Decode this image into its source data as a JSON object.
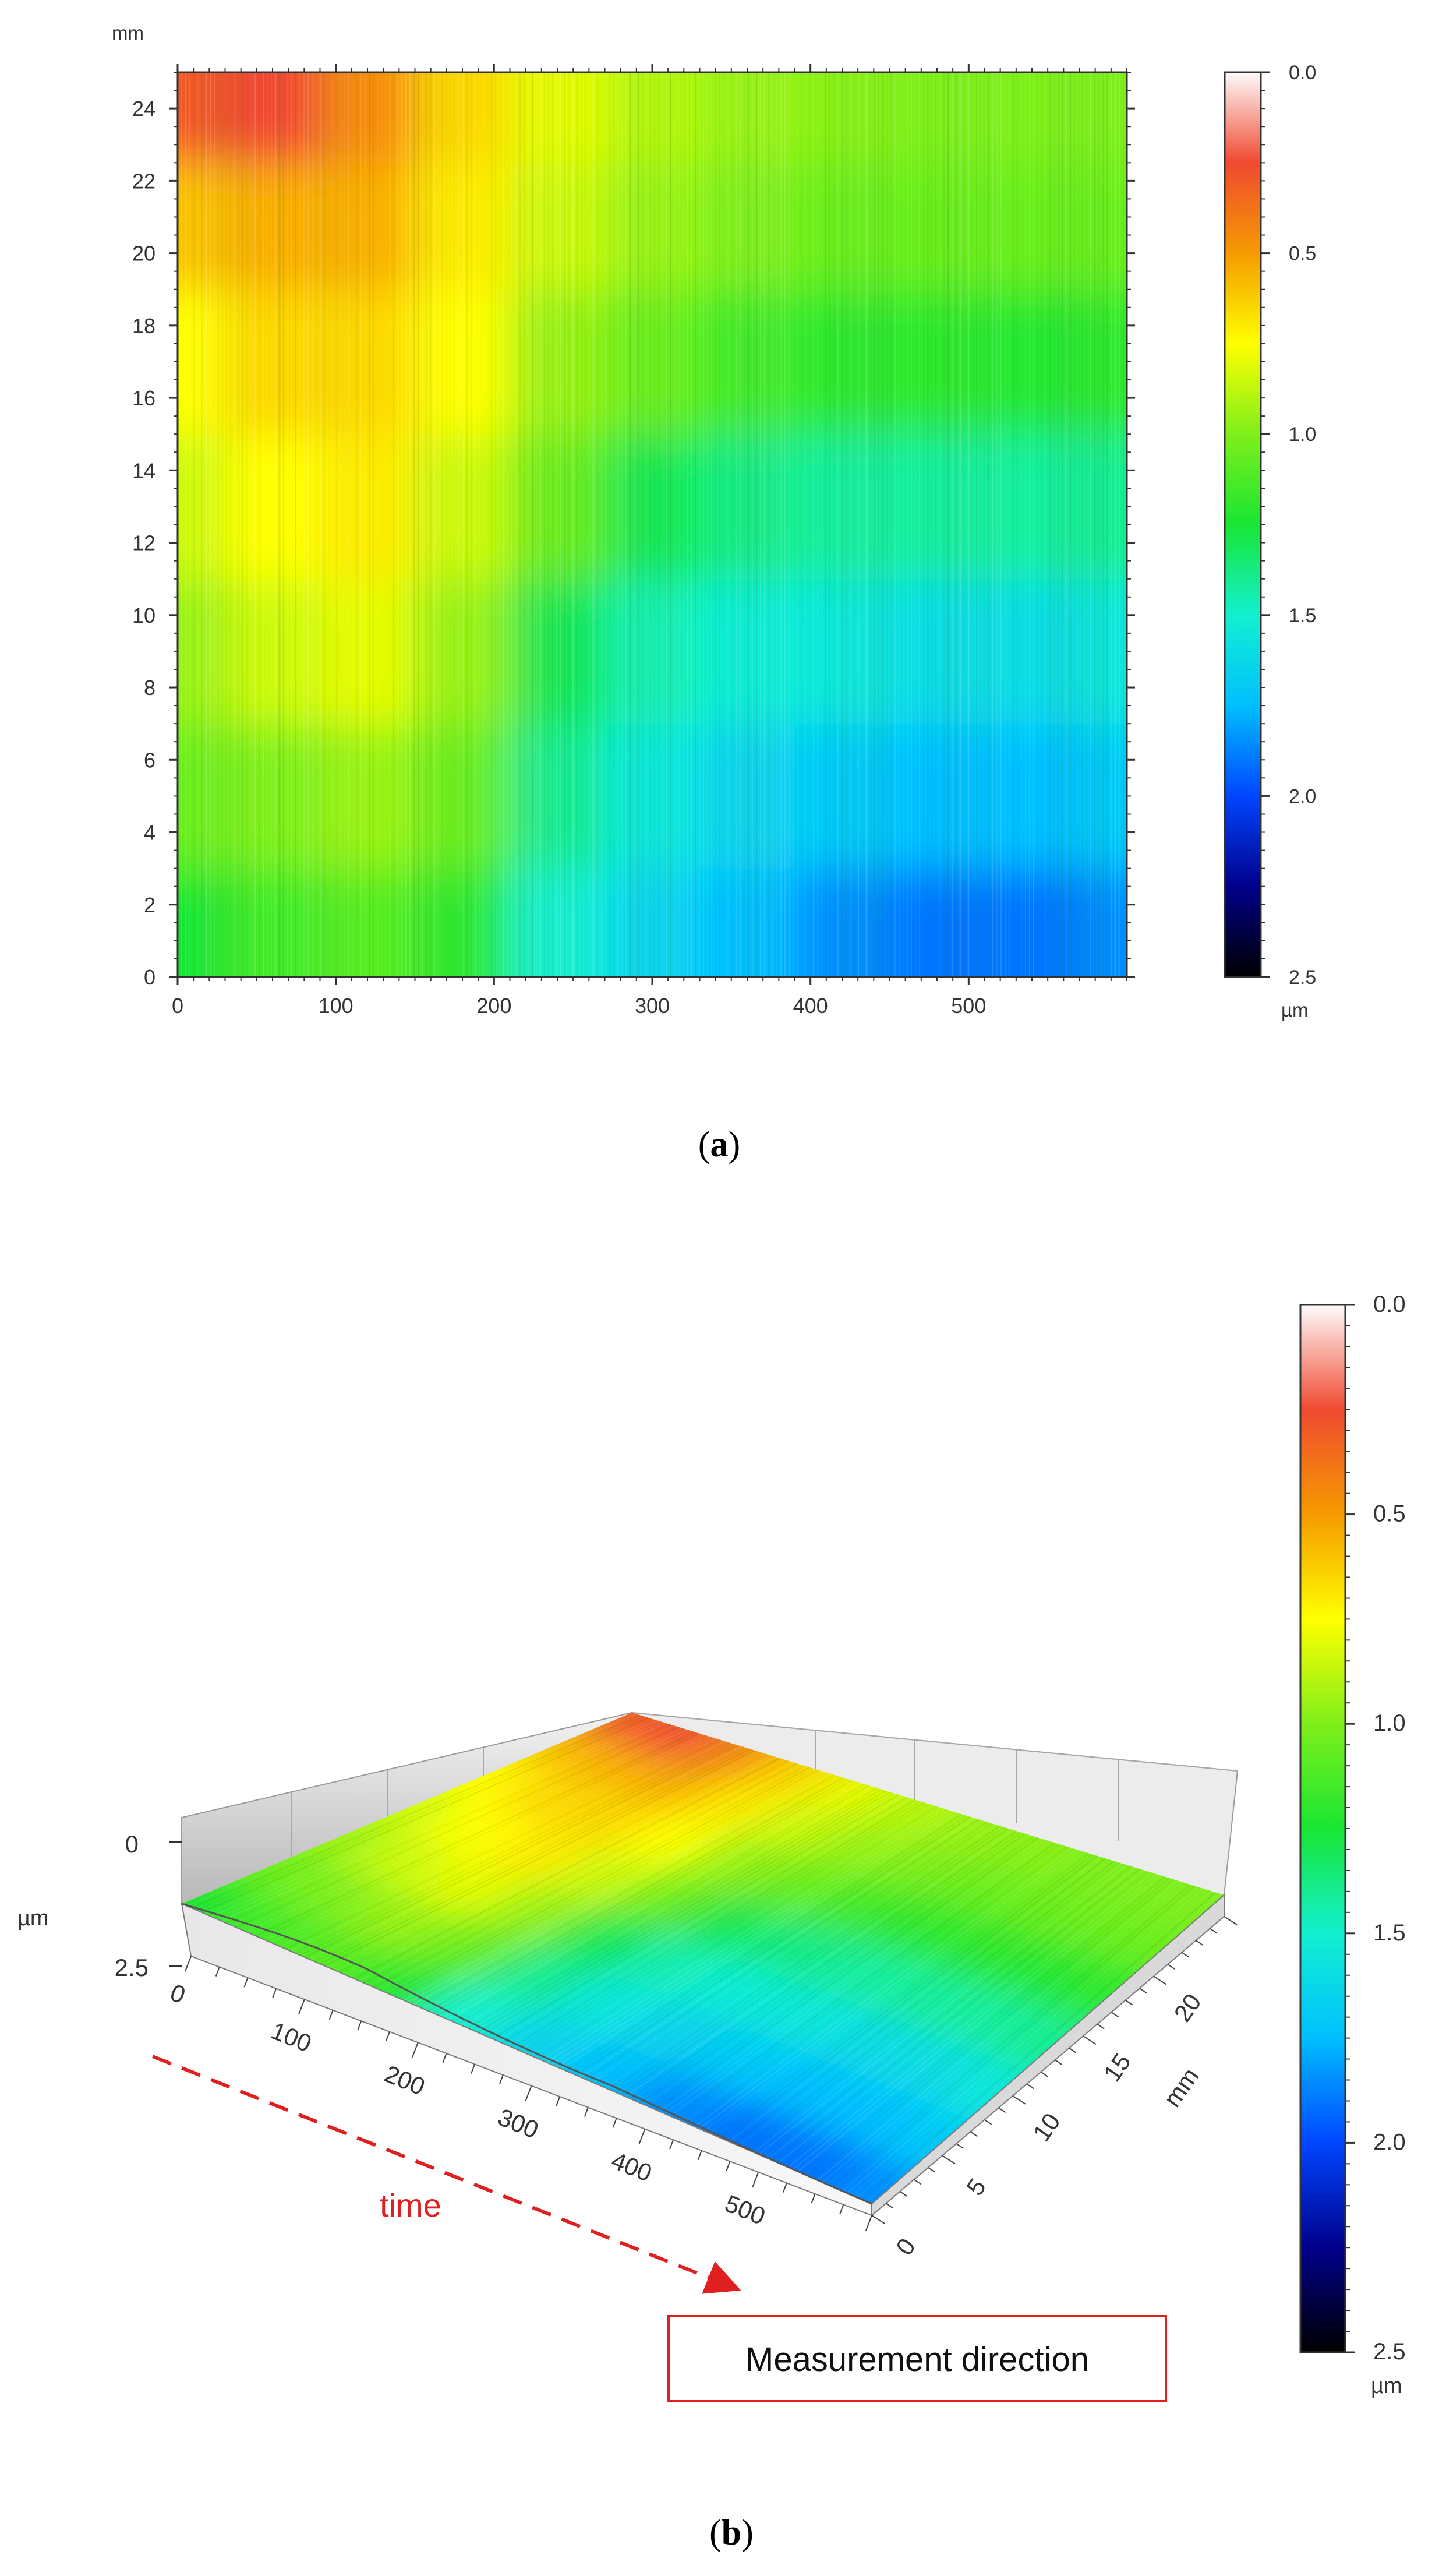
{
  "panel_a_label": "a",
  "panel_b_label": "b",
  "annotations": {
    "time": "time",
    "measurement_direction": "Measurement direction"
  },
  "colors": {
    "annotation_red": "#e02020",
    "colormap_stops": [
      "#fdfbfb",
      "#f04a30",
      "#f59a00",
      "#ffff00",
      "#7fef1a",
      "#19e633",
      "#12f0d0",
      "#00bfff",
      "#0046ff",
      "#00008b",
      "#000000"
    ]
  },
  "chart_data": [
    {
      "type": "heatmap",
      "title": "",
      "x": [
        0,
        100,
        200,
        300,
        400,
        500
      ],
      "xlim": [
        0,
        600
      ],
      "xlabel": "",
      "ylabel": "mm",
      "yticks": [
        0,
        2,
        4,
        6,
        8,
        10,
        12,
        14,
        16,
        18,
        20,
        22,
        24
      ],
      "ylim": [
        0,
        25
      ],
      "colorbar": {
        "ticks": [
          "0.0",
          "0.5",
          "1.0",
          "1.5",
          "2.0",
          "2.5"
        ],
        "unit": "µm",
        "range": [
          0,
          2.5
        ],
        "reversed": true
      },
      "grid_y_mm": [
        1,
        5,
        9,
        13,
        17,
        21,
        24
      ],
      "grid_x": [
        0,
        60,
        120,
        180,
        240,
        300,
        360,
        420,
        480,
        540,
        600
      ],
      "values_um": [
        [
          1.25,
          1.15,
          1.1,
          1.2,
          1.5,
          1.65,
          1.75,
          1.85,
          1.9,
          1.9,
          1.85
        ],
        [
          1.05,
          1.0,
          0.95,
          1.05,
          1.4,
          1.55,
          1.65,
          1.7,
          1.75,
          1.75,
          1.7
        ],
        [
          0.95,
          0.85,
          0.8,
          0.95,
          1.3,
          1.45,
          1.52,
          1.55,
          1.6,
          1.6,
          1.55
        ],
        [
          0.85,
          0.75,
          0.7,
          0.85,
          1.05,
          1.3,
          1.38,
          1.42,
          1.42,
          1.42,
          1.4
        ],
        [
          0.75,
          0.65,
          0.65,
          0.75,
          0.95,
          1.05,
          1.15,
          1.2,
          1.2,
          1.22,
          1.2
        ],
        [
          0.6,
          0.55,
          0.55,
          0.7,
          0.85,
          0.95,
          1.0,
          1.05,
          1.05,
          1.05,
          1.05
        ],
        [
          0.3,
          0.25,
          0.45,
          0.65,
          0.8,
          0.9,
          0.95,
          0.98,
          1.0,
          1.0,
          1.0
        ]
      ]
    },
    {
      "type": "heatmap",
      "title": "",
      "view": "3d-surface",
      "x_ticks": [
        0,
        100,
        200,
        300,
        400,
        500
      ],
      "y_ticks": [
        0,
        5,
        10,
        15,
        20
      ],
      "y_unit": "mm",
      "z_ticks": [
        0,
        2.5
      ],
      "z_unit": "µm",
      "colorbar": {
        "ticks": [
          "0.0",
          "0.5",
          "1.0",
          "1.5",
          "2.0",
          "2.5"
        ],
        "unit": "µm",
        "range": [
          0,
          2.5
        ],
        "reversed": true
      }
    }
  ]
}
